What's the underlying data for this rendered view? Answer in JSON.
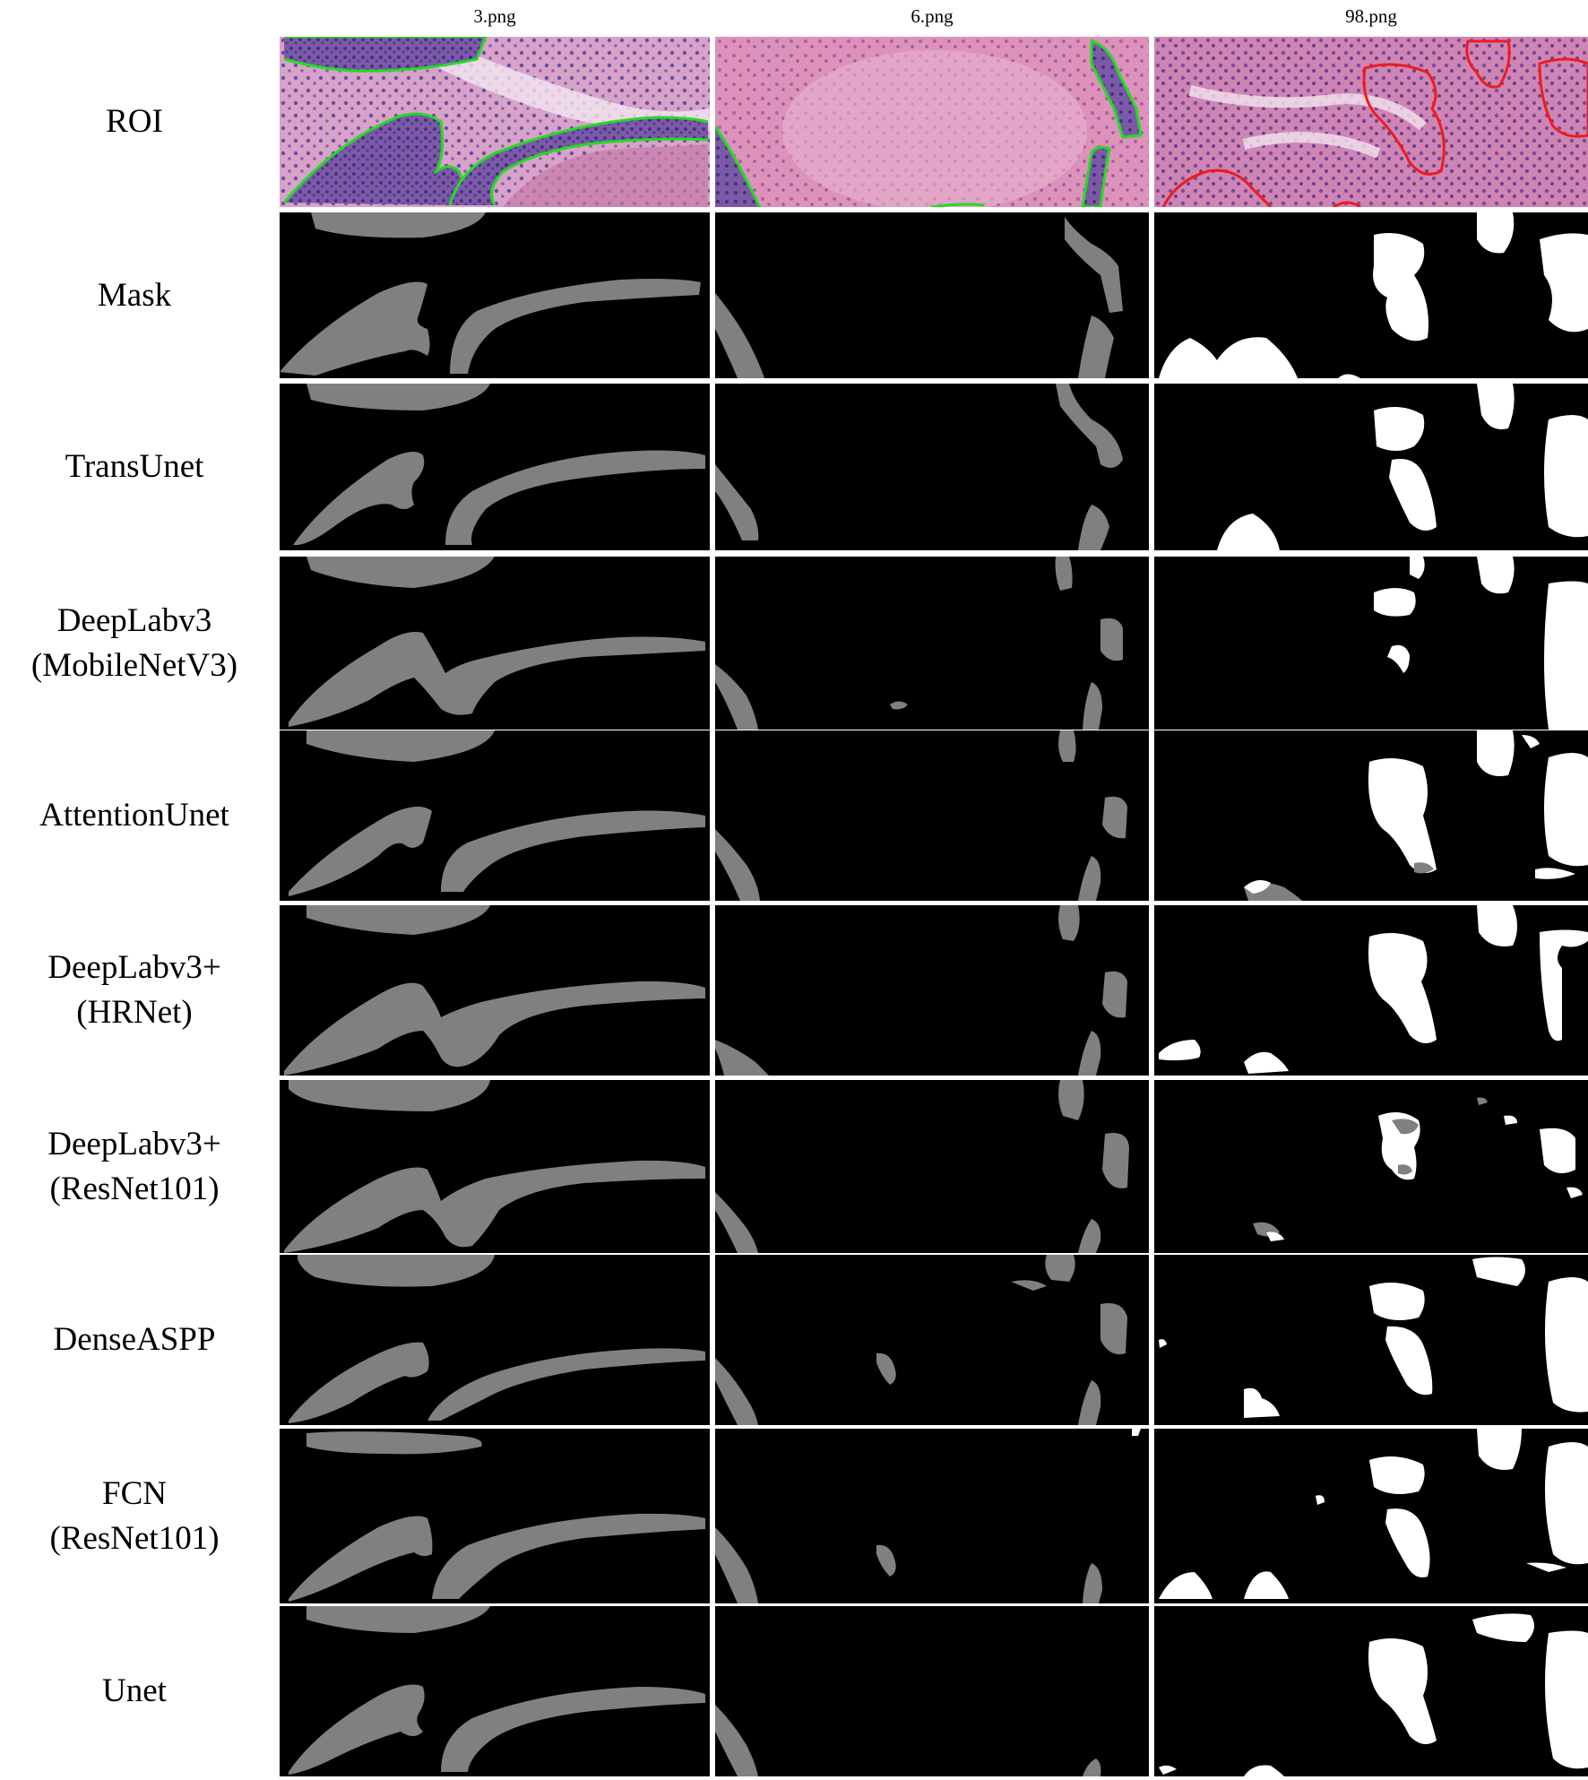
{
  "columns": [
    "3.png",
    "6.png",
    "98.png"
  ],
  "rows": [
    {
      "id": "roi",
      "lines": [
        "ROI"
      ]
    },
    {
      "id": "mask",
      "lines": [
        "Mask"
      ]
    },
    {
      "id": "transunet",
      "lines": [
        "TransUnet"
      ]
    },
    {
      "id": "deeplabv3-mobilenetv3",
      "lines": [
        "DeepLabv3",
        "(MobileNetV3)"
      ]
    },
    {
      "id": "attentionunet",
      "lines": [
        "AttentionUnet"
      ]
    },
    {
      "id": "deeplabv3plus-hrnet",
      "lines": [
        "DeepLabv3+",
        "(HRNet)"
      ]
    },
    {
      "id": "deeplabv3plus-resnet101",
      "lines": [
        "DeepLabv3+",
        "(ResNet101)"
      ]
    },
    {
      "id": "denseaspp",
      "lines": [
        "DenseASPP"
      ]
    },
    {
      "id": "fcn-resnet101",
      "lines": [
        "FCN",
        "(ResNet101)"
      ]
    },
    {
      "id": "unet",
      "lines": [
        "Unet"
      ]
    }
  ],
  "colors": {
    "background": "#000000",
    "mask_gray": "#808080",
    "mask_white": "#ffffff",
    "tissue_pink": "#d98fb8",
    "tissue_purple": "#6a4f9e",
    "contour_green": "#22dd22",
    "contour_red": "#ee1c1c"
  }
}
